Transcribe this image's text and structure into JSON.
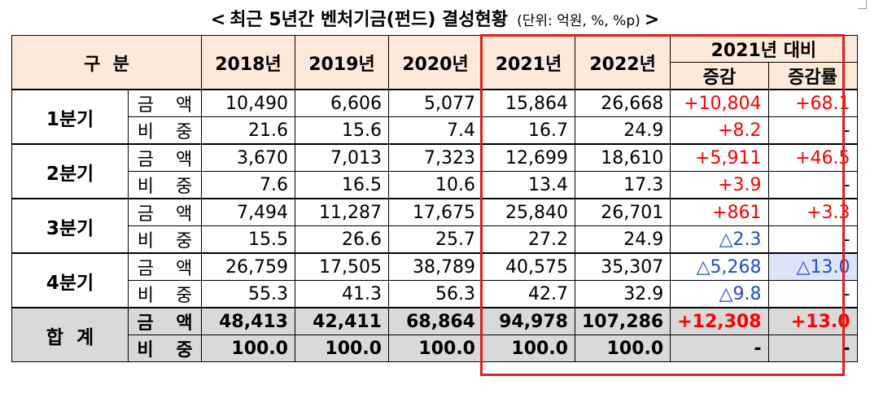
{
  "title": {
    "left_arrow": "<",
    "main": "최근 5년간 벤처기금(펀드) 결성현황",
    "unit": "(단위: 억원, %, %p)",
    "right_arrow": ">"
  },
  "header": {
    "category": "구  분",
    "years": [
      "2018년",
      "2019년",
      "2020년",
      "2021년",
      "2022년"
    ],
    "comparison": "2021년 대비",
    "change": "증감",
    "change_rate": "증감률"
  },
  "rows": [
    {
      "quarter": "1분기",
      "amount": {
        "label": "금 액",
        "values": [
          "10,490",
          "6,606",
          "5,077",
          "15,864",
          "26,668"
        ],
        "change": "+10,804",
        "rate": "+68.1"
      },
      "share": {
        "label": "비 중",
        "values": [
          "21.6",
          "15.6",
          "7.4",
          "16.7",
          "24.9"
        ],
        "change": "+8.2",
        "rate": "-"
      }
    },
    {
      "quarter": "2분기",
      "amount": {
        "label": "금 액",
        "values": [
          "3,670",
          "7,013",
          "7,323",
          "12,699",
          "18,610"
        ],
        "change": "+5,911",
        "rate": "+46.5"
      },
      "share": {
        "label": "비 중",
        "values": [
          "7.6",
          "16.5",
          "10.6",
          "13.4",
          "17.3"
        ],
        "change": "+3.9",
        "rate": "-"
      }
    },
    {
      "quarter": "3분기",
      "amount": {
        "label": "금 액",
        "values": [
          "7,494",
          "11,287",
          "17,675",
          "25,840",
          "26,701"
        ],
        "change": "+861",
        "rate": "+3.3"
      },
      "share": {
        "label": "비 중",
        "values": [
          "15.5",
          "26.6",
          "25.7",
          "27.2",
          "24.9"
        ],
        "change": "△2.3",
        "rate": "-"
      }
    },
    {
      "quarter": "4분기",
      "amount": {
        "label": "금 액",
        "values": [
          "26,759",
          "17,505",
          "38,789",
          "40,575",
          "35,307"
        ],
        "change": "△5,268",
        "rate": "△13.0"
      },
      "share": {
        "label": "비 중",
        "values": [
          "55.3",
          "41.3",
          "56.3",
          "42.7",
          "32.9"
        ],
        "change": "△9.8",
        "rate": "-"
      }
    }
  ],
  "total": {
    "label": "합  계",
    "amount": {
      "label": "금 액",
      "values": [
        "48,413",
        "42,411",
        "68,864",
        "94,978",
        "107,286"
      ],
      "change": "+12,308",
      "rate": "+13.0"
    },
    "share": {
      "label": "비 중",
      "values": [
        "100.0",
        "100.0",
        "100.0",
        "100.0",
        "100.0"
      ],
      "change": "-",
      "rate": "-"
    }
  },
  "colors": {
    "header_bg": "#fde9d9",
    "total_bg": "#d9d9d9",
    "increase": "#ff0000",
    "decrease": "#1f49d6",
    "highlight_box": "#e0201b",
    "highlight_cell": "#dde5fb"
  }
}
